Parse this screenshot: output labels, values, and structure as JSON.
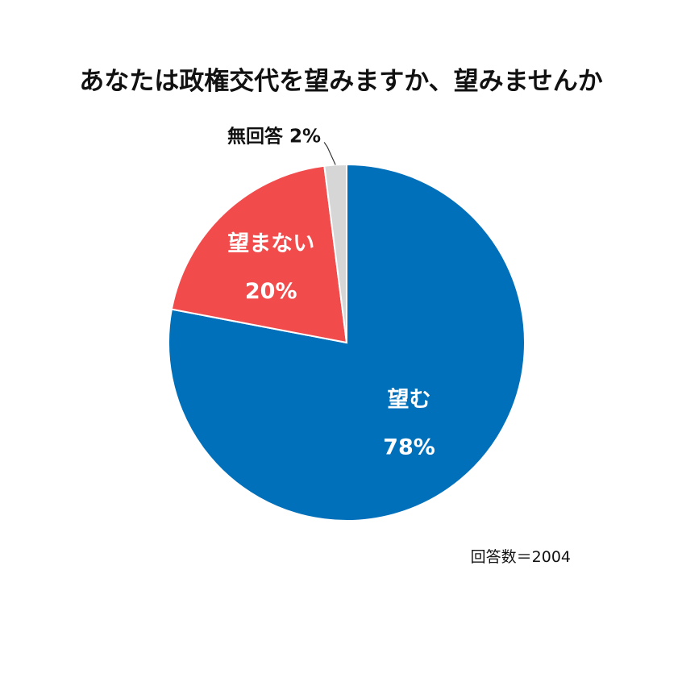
{
  "chart_data": {
    "type": "pie",
    "title": "あなたは政権交代を望みますか、望みませんか",
    "slices": [
      {
        "label": "望む",
        "value": 78,
        "value_label": "78%",
        "color": "#0070bb"
      },
      {
        "label": "望まない",
        "value": 20,
        "value_label": "20%",
        "color": "#f24b4b"
      },
      {
        "label": "無回答",
        "value": 2,
        "value_label": "2%",
        "color": "#d6d6d6"
      }
    ],
    "start_angle": "12 o'clock",
    "direction": "clockwise",
    "note": "回答数＝2004"
  }
}
